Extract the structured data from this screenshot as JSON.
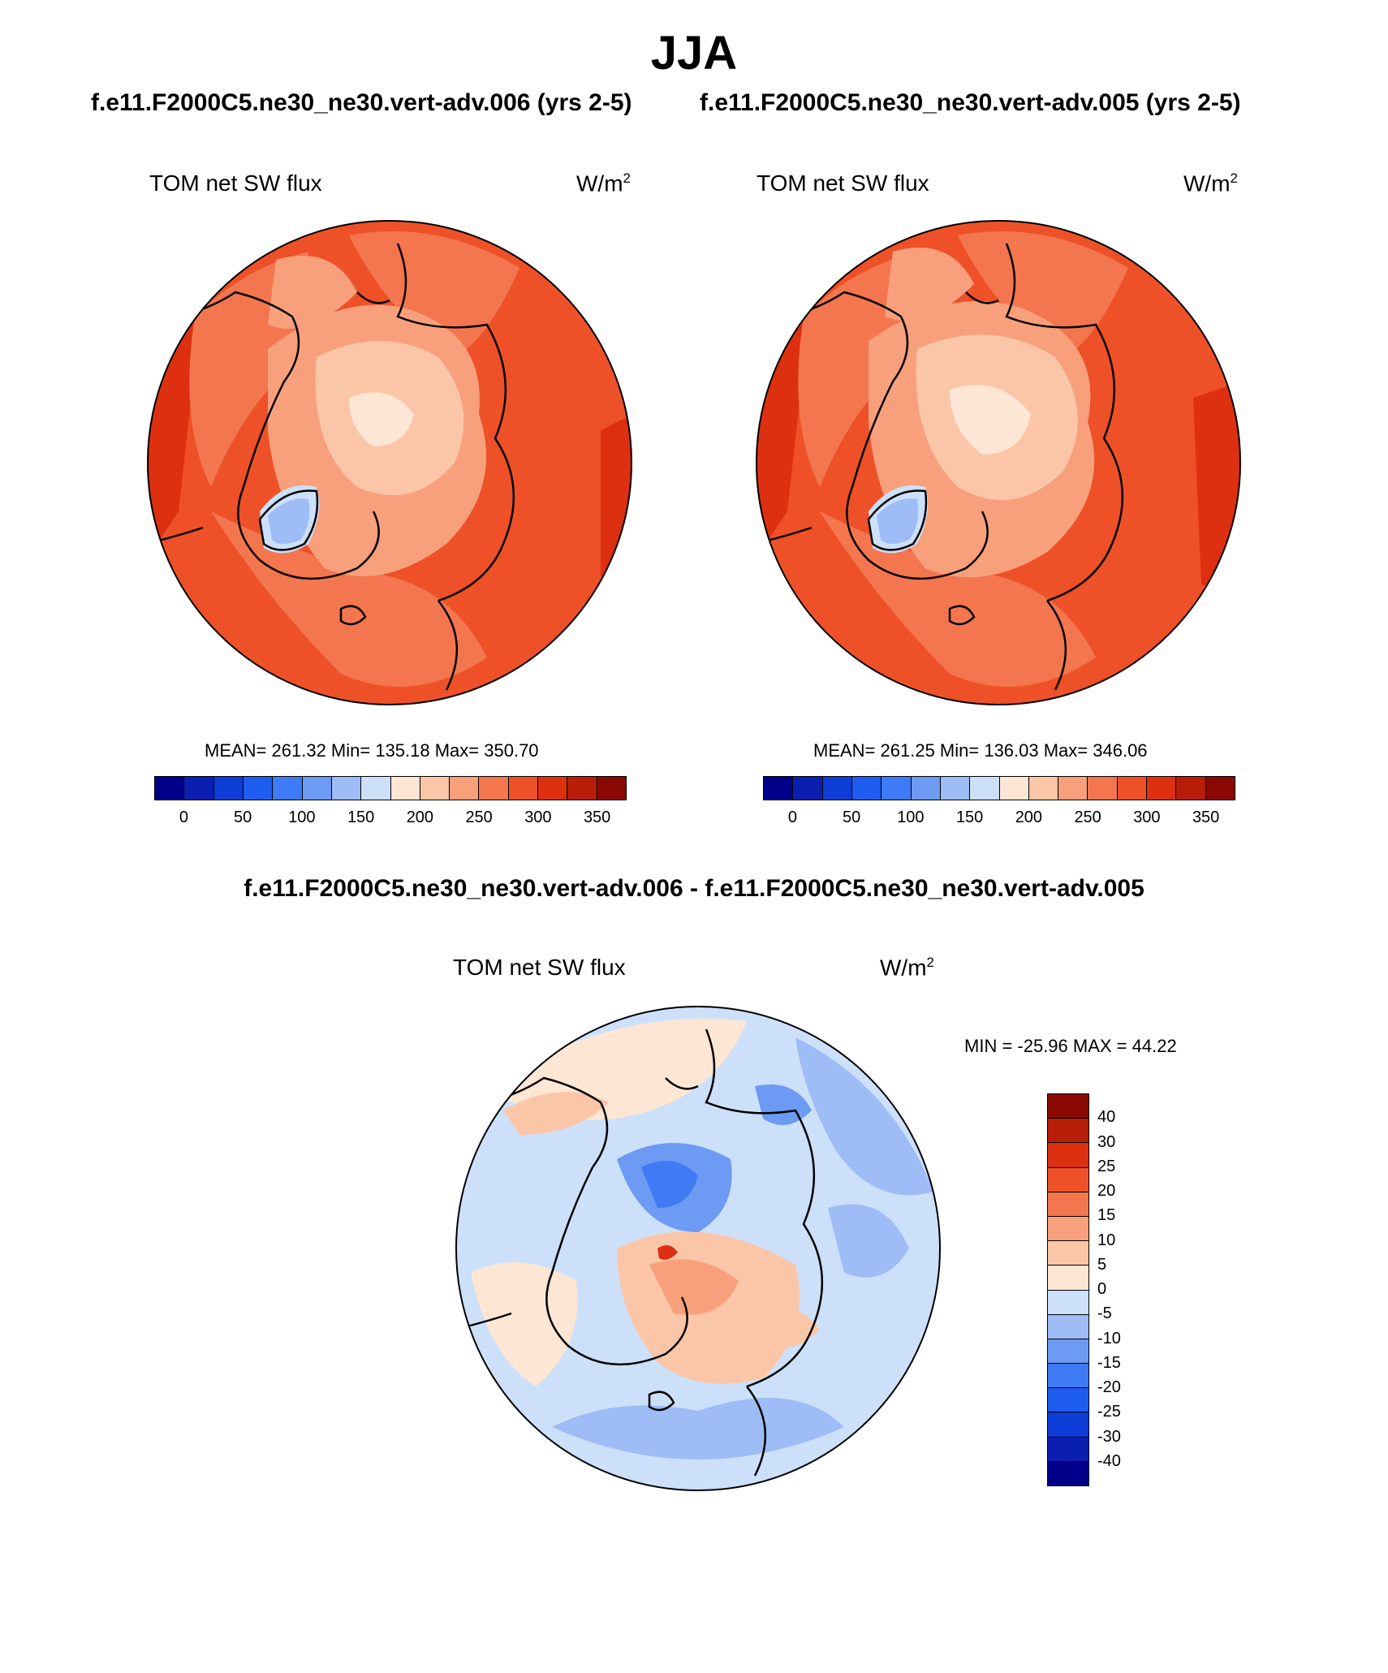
{
  "figure": {
    "season": "JJA",
    "case_a_caption": "f.e11.F2000C5.ne30_ne30.vert-adv.006 (yrs 2-5)",
    "case_b_caption": "f.e11.F2000C5.ne30_ne30.vert-adv.005 (yrs 2-5)",
    "diff_caption": "f.e11.F2000C5.ne30_ne30.vert-adv.006 - f.e11.F2000C5.ne30_ne30.vert-adv.005"
  },
  "panels": [
    {
      "variable": "TOM net SW flux",
      "units_base": "W/m",
      "units_exp": "2",
      "stats": "MEAN= 261.32  Min= 135.18  Max= 350.70"
    },
    {
      "variable": "TOM net SW flux",
      "units_base": "W/m",
      "units_exp": "2",
      "stats": "MEAN= 261.25  Min= 136.03  Max= 346.06"
    },
    {
      "variable": "TOM net SW flux",
      "units_base": "W/m",
      "units_exp": "2",
      "stats": "MIN = -25.96 MAX =  44.22"
    }
  ],
  "colorbar_abs": {
    "ticks": [
      "0",
      "50",
      "100",
      "150",
      "200",
      "250",
      "300",
      "350"
    ],
    "colors": [
      "#00008a",
      "#0a1fb0",
      "#0d3dd6",
      "#1f5cf0",
      "#3f7bf5",
      "#6d9af2",
      "#9ebcf5",
      "#cde0fa",
      "#fde6d3",
      "#fbc6a8",
      "#f8a07c",
      "#f3764f",
      "#ee5128",
      "#dd3010",
      "#b81d08",
      "#8a0a03"
    ]
  },
  "colorbar_diff": {
    "ticks": [
      "40",
      "30",
      "25",
      "20",
      "15",
      "10",
      "5",
      "0",
      "-5",
      "-10",
      "-15",
      "-20",
      "-25",
      "-30",
      "-40"
    ],
    "colors": [
      "#8a0a03",
      "#b81d08",
      "#dd3010",
      "#ee5128",
      "#f3764f",
      "#f8a07c",
      "#fbc6a8",
      "#fde6d3",
      "#cde0fa",
      "#9ebcf5",
      "#6d9af2",
      "#3f7bf5",
      "#1f5cf0",
      "#0d3dd6",
      "#0a1fb0",
      "#00008a"
    ]
  },
  "map_colors": {
    "ocean_a": "#ee5128",
    "mid_a": "#f3764f",
    "light_a": "#f8a07c",
    "pale_a": "#fbc6a8",
    "paler_a": "#fde6d3",
    "ice_a": "#cde0fa",
    "ice2_a": "#9ebcf5",
    "dark_a": "#dd3010",
    "diff_pos1": "#fde6d3",
    "diff_pos2": "#fbc6a8",
    "diff_pos3": "#f8a07c",
    "diff_pos4": "#dd3010",
    "diff_neg1": "#cde0fa",
    "diff_neg2": "#9ebcf5",
    "diff_neg3": "#6d9af2",
    "diff_neg4": "#3f7bf5"
  }
}
